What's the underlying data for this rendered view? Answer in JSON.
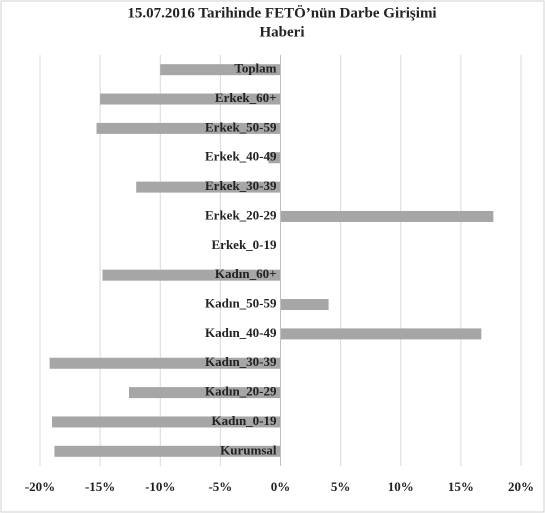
{
  "chart_data": {
    "type": "bar",
    "orientation": "horizontal",
    "title": [
      "15.07.2016 Tarihinde FETÖ’nün Darbe Girişimi",
      "Haberi"
    ],
    "categories": [
      "Toplam",
      "Erkek_60+",
      "Erkek_50-59",
      "Erkek_40-49",
      "Erkek_30-39",
      "Erkek_20-29",
      "Erkek_0-19",
      "Kadın_60+",
      "Kadın_50-59",
      "Kadın_40-49",
      "Kadın_30-39",
      "Kadın_20-29",
      "Kadın_0-19",
      "Kurumsal"
    ],
    "values": [
      -10,
      -15,
      -15.3,
      -1,
      -12,
      17.7,
      0,
      -14.8,
      4,
      16.7,
      -19.2,
      -12.6,
      -19,
      -18.8
    ],
    "color": "#a6a6a6",
    "xlim": [
      -20,
      20
    ],
    "xticks": [
      {
        "value": -20,
        "label": "-20%"
      },
      {
        "value": -15,
        "label": "-15%"
      },
      {
        "value": -10,
        "label": "-10%"
      },
      {
        "value": -5,
        "label": "-5%"
      },
      {
        "value": 0,
        "label": "0%"
      },
      {
        "value": 5,
        "label": "5%"
      },
      {
        "value": 10,
        "label": "10%"
      },
      {
        "value": 15,
        "label": "15%"
      },
      {
        "value": 20,
        "label": "20%"
      }
    ],
    "grid": true
  }
}
